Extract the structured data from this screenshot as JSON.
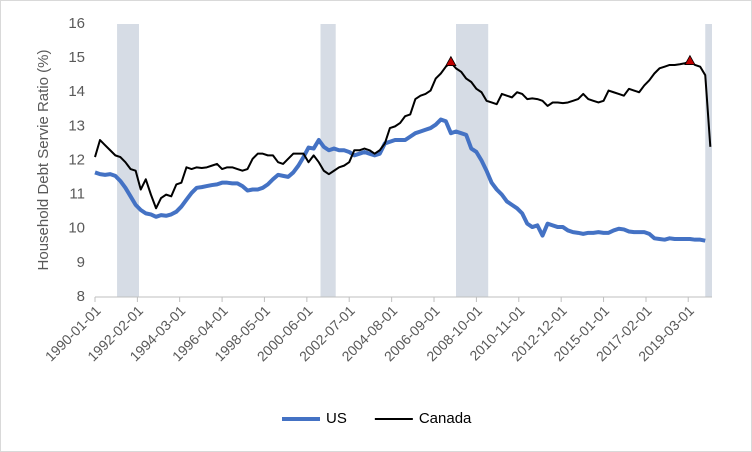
{
  "chart_data": {
    "type": "line",
    "y_label": "Household Debt Servie Ratio (%)",
    "x": [
      "1990-01-01",
      "1990-04-01",
      "1990-07-01",
      "1990-10-01",
      "1991-01-01",
      "1991-04-01",
      "1991-07-01",
      "1991-10-01",
      "1992-01-01",
      "1992-04-01",
      "1992-07-01",
      "1992-10-01",
      "1993-01-01",
      "1993-04-01",
      "1993-07-01",
      "1993-10-01",
      "1994-01-01",
      "1994-04-01",
      "1994-07-01",
      "1994-10-01",
      "1995-01-01",
      "1995-04-01",
      "1995-07-01",
      "1995-10-01",
      "1996-01-01",
      "1996-04-01",
      "1996-07-01",
      "1996-10-01",
      "1997-01-01",
      "1997-04-01",
      "1997-07-01",
      "1997-10-01",
      "1998-01-01",
      "1998-04-01",
      "1998-07-01",
      "1998-10-01",
      "1999-01-01",
      "1999-04-01",
      "1999-07-01",
      "1999-10-01",
      "2000-01-01",
      "2000-04-01",
      "2000-07-01",
      "2000-10-01",
      "2001-01-01",
      "2001-04-01",
      "2001-07-01",
      "2001-10-01",
      "2002-01-01",
      "2002-04-01",
      "2002-07-01",
      "2002-10-01",
      "2003-01-01",
      "2003-04-01",
      "2003-07-01",
      "2003-10-01",
      "2004-01-01",
      "2004-04-01",
      "2004-07-01",
      "2004-10-01",
      "2005-01-01",
      "2005-04-01",
      "2005-07-01",
      "2005-10-01",
      "2006-01-01",
      "2006-04-01",
      "2006-07-01",
      "2006-10-01",
      "2007-01-01",
      "2007-04-01",
      "2007-07-01",
      "2007-10-01",
      "2008-01-01",
      "2008-04-01",
      "2008-07-01",
      "2008-10-01",
      "2009-01-01",
      "2009-04-01",
      "2009-07-01",
      "2009-10-01",
      "2010-01-01",
      "2010-04-01",
      "2010-07-01",
      "2010-10-01",
      "2011-01-01",
      "2011-04-01",
      "2011-07-01",
      "2011-10-01",
      "2012-01-01",
      "2012-04-01",
      "2012-07-01",
      "2012-10-01",
      "2013-01-01",
      "2013-04-01",
      "2013-07-01",
      "2013-10-01",
      "2014-01-01",
      "2014-04-01",
      "2014-07-01",
      "2014-10-01",
      "2015-01-01",
      "2015-04-01",
      "2015-07-01",
      "2015-10-01",
      "2016-01-01",
      "2016-04-01",
      "2016-07-01",
      "2016-10-01",
      "2017-01-01",
      "2017-04-01",
      "2017-07-01",
      "2017-10-01",
      "2018-01-01",
      "2018-04-01",
      "2018-07-01",
      "2018-10-01",
      "2019-01-01",
      "2019-04-01",
      "2019-07-01",
      "2019-10-01",
      "2020-01-01",
      "2020-04-01"
    ],
    "series": [
      {
        "name": "US",
        "color": "#4472c4",
        "width": 4,
        "values": [
          11.65,
          11.6,
          11.58,
          11.6,
          11.55,
          11.4,
          11.2,
          10.95,
          10.7,
          10.55,
          10.45,
          10.42,
          10.35,
          10.4,
          10.38,
          10.42,
          10.5,
          10.65,
          10.85,
          11.05,
          11.2,
          11.22,
          11.25,
          11.28,
          11.3,
          11.35,
          11.35,
          11.33,
          11.33,
          11.25,
          11.12,
          11.15,
          11.15,
          11.2,
          11.3,
          11.45,
          11.58,
          11.55,
          11.52,
          11.65,
          11.85,
          12.1,
          12.38,
          12.35,
          12.6,
          12.4,
          12.3,
          12.35,
          12.3,
          12.3,
          12.25,
          12.15,
          12.2,
          12.25,
          12.2,
          12.15,
          12.2,
          12.5,
          12.55,
          12.6,
          12.6,
          12.6,
          12.7,
          12.8,
          12.85,
          12.9,
          12.95,
          13.05,
          13.2,
          13.15,
          12.8,
          12.85,
          12.8,
          12.75,
          12.35,
          12.25,
          12.0,
          11.7,
          11.35,
          11.15,
          11.0,
          10.8,
          10.7,
          10.6,
          10.45,
          10.15,
          10.05,
          10.1,
          9.8,
          10.15,
          10.1,
          10.05,
          10.05,
          9.95,
          9.9,
          9.88,
          9.85,
          9.88,
          9.88,
          9.9,
          9.88,
          9.88,
          9.95,
          10.0,
          9.98,
          9.92,
          9.9,
          9.9,
          9.9,
          9.85,
          9.72,
          9.7,
          9.68,
          9.72,
          9.7,
          9.7,
          9.7,
          9.7,
          9.68,
          9.68,
          9.65,
          null
        ]
      },
      {
        "name": "Canada",
        "color": "#000000",
        "width": 2,
        "marker_points": [
          70,
          117
        ],
        "marker_color": "#c00000",
        "values": [
          12.1,
          12.6,
          12.45,
          12.3,
          12.15,
          12.1,
          11.95,
          11.75,
          11.7,
          11.15,
          11.45,
          11.0,
          10.6,
          10.9,
          11.0,
          10.95,
          11.3,
          11.35,
          11.8,
          11.75,
          11.8,
          11.78,
          11.8,
          11.85,
          11.9,
          11.75,
          11.8,
          11.8,
          11.75,
          11.7,
          11.75,
          12.05,
          12.2,
          12.2,
          12.15,
          12.15,
          11.95,
          11.9,
          12.05,
          12.2,
          12.2,
          12.2,
          11.95,
          12.15,
          11.95,
          11.7,
          11.6,
          11.7,
          11.8,
          11.85,
          11.95,
          12.3,
          12.3,
          12.35,
          12.3,
          12.2,
          12.3,
          12.5,
          12.95,
          13.0,
          13.1,
          13.3,
          13.35,
          13.8,
          13.9,
          13.95,
          14.05,
          14.4,
          14.55,
          14.75,
          14.87,
          14.7,
          14.6,
          14.4,
          14.3,
          14.1,
          14.0,
          13.75,
          13.7,
          13.65,
          13.95,
          13.9,
          13.85,
          14.0,
          13.95,
          13.8,
          13.82,
          13.8,
          13.75,
          13.6,
          13.7,
          13.7,
          13.68,
          13.7,
          13.75,
          13.8,
          13.95,
          13.8,
          13.75,
          13.7,
          13.75,
          14.05,
          14.0,
          13.95,
          13.9,
          14.1,
          14.05,
          14.0,
          14.2,
          14.35,
          14.55,
          14.7,
          14.75,
          14.8,
          14.8,
          14.82,
          14.85,
          14.9,
          14.8,
          14.75,
          14.5,
          12.4
        ]
      }
    ],
    "shading": [
      [
        "1991-02-01",
        "1992-03-01"
      ],
      [
        "2001-02-01",
        "2001-11-01"
      ],
      [
        "2007-10-01",
        "2009-05-01"
      ],
      [
        "2020-01-01",
        "2020-05-01"
      ]
    ],
    "shading_color": "#d6dce5",
    "xlim": [
      "1990-01-01",
      "2020-05-01"
    ],
    "xticks": [
      "1990-01-01",
      "1992-02-01",
      "1994-03-01",
      "1996-04-01",
      "1998-05-01",
      "2000-06-01",
      "2002-07-01",
      "2004-08-01",
      "2006-09-01",
      "2008-10-01",
      "2010-11-01",
      "2012-12-01",
      "2015-01-01",
      "2017-02-01",
      "2019-03-01"
    ],
    "ylim": [
      8,
      16
    ],
    "yticks": [
      8,
      9,
      10,
      11,
      12,
      13,
      14,
      15,
      16
    ],
    "grid": false,
    "legend": "bottom"
  }
}
